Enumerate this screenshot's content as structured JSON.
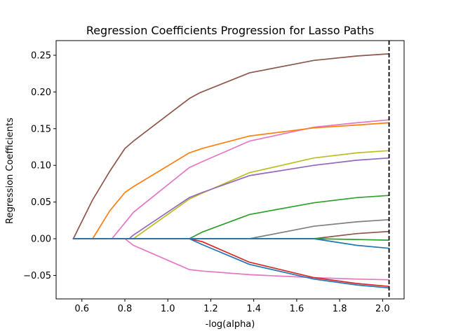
{
  "chart_data": {
    "type": "line",
    "title": "Regression Coefficients Progression for Lasso Paths",
    "xlabel": "-log(alpha)",
    "ylabel": "Regression Coefficients",
    "xlim": [
      0.48,
      2.1
    ],
    "ylim": [
      -0.082,
      0.27
    ],
    "x_ticks": [
      0.6,
      0.8,
      1.0,
      1.2,
      1.4,
      1.6,
      1.8,
      2.0
    ],
    "x_tick_labels": [
      "0.6",
      "0.8",
      "1.0",
      "1.2",
      "1.4",
      "1.6",
      "1.8",
      "2.0"
    ],
    "y_ticks": [
      -0.05,
      0.0,
      0.05,
      0.1,
      0.15,
      0.2,
      0.25
    ],
    "y_tick_labels": [
      "−0.05",
      "0.00",
      "0.05",
      "0.10",
      "0.15",
      "0.20",
      "0.25"
    ],
    "grid": false,
    "legend": "none",
    "vline": {
      "x": 2.03,
      "style": "dashed",
      "color": "#000000"
    },
    "series": [
      {
        "color": "#8c564b",
        "points": [
          [
            0.56,
            0.0
          ],
          [
            0.65,
            0.053
          ],
          [
            0.73,
            0.092
          ],
          [
            0.8,
            0.123
          ],
          [
            0.84,
            0.133
          ],
          [
            1.1,
            0.191
          ],
          [
            1.15,
            0.199
          ],
          [
            1.38,
            0.226
          ],
          [
            1.68,
            0.243
          ],
          [
            1.88,
            0.249
          ],
          [
            2.03,
            0.252
          ]
        ]
      },
      {
        "color": "#e377c2",
        "points": [
          [
            0.56,
            0.0
          ],
          [
            0.74,
            0.0
          ],
          [
            0.84,
            0.036
          ],
          [
            1.1,
            0.097
          ],
          [
            1.16,
            0.105
          ],
          [
            1.38,
            0.133
          ],
          [
            1.68,
            0.152
          ],
          [
            1.88,
            0.158
          ],
          [
            2.03,
            0.162
          ]
        ]
      },
      {
        "color": "#ff7f0e",
        "points": [
          [
            0.56,
            0.0
          ],
          [
            0.65,
            0.0
          ],
          [
            0.73,
            0.038
          ],
          [
            0.8,
            0.063
          ],
          [
            0.84,
            0.071
          ],
          [
            1.1,
            0.117
          ],
          [
            1.16,
            0.123
          ],
          [
            1.38,
            0.14
          ],
          [
            1.68,
            0.151
          ],
          [
            1.88,
            0.155
          ],
          [
            2.03,
            0.158
          ]
        ]
      },
      {
        "color": "#bcbd22",
        "points": [
          [
            0.56,
            0.0
          ],
          [
            0.84,
            0.0
          ],
          [
            1.1,
            0.054
          ],
          [
            1.16,
            0.062
          ],
          [
            1.38,
            0.09
          ],
          [
            1.68,
            0.11
          ],
          [
            1.88,
            0.117
          ],
          [
            2.03,
            0.12
          ]
        ]
      },
      {
        "color": "#9467bd",
        "points": [
          [
            0.56,
            0.0
          ],
          [
            0.82,
            0.0
          ],
          [
            0.84,
            0.005
          ],
          [
            1.1,
            0.056
          ],
          [
            1.16,
            0.063
          ],
          [
            1.38,
            0.086
          ],
          [
            1.68,
            0.1
          ],
          [
            1.88,
            0.107
          ],
          [
            2.03,
            0.11
          ]
        ]
      },
      {
        "color": "#2ca02c",
        "points": [
          [
            0.56,
            0.0
          ],
          [
            1.1,
            0.0
          ],
          [
            1.16,
            0.009
          ],
          [
            1.38,
            0.033
          ],
          [
            1.68,
            0.049
          ],
          [
            1.88,
            0.056
          ],
          [
            2.03,
            0.059
          ]
        ]
      },
      {
        "color": "#7f7f7f",
        "points": [
          [
            0.56,
            0.0
          ],
          [
            1.38,
            0.0
          ],
          [
            1.68,
            0.017
          ],
          [
            1.88,
            0.023
          ],
          [
            2.03,
            0.026
          ]
        ]
      },
      {
        "color": "#8c564b",
        "points": [
          [
            0.56,
            0.0
          ],
          [
            1.68,
            0.0
          ],
          [
            1.88,
            0.007
          ],
          [
            2.03,
            0.01
          ]
        ]
      },
      {
        "color": "#2ca02c",
        "points": [
          [
            0.56,
            0.0
          ],
          [
            1.68,
            0.0
          ],
          [
            1.88,
            -0.001
          ],
          [
            2.03,
            -0.002
          ]
        ]
      },
      {
        "color": "#1f77b4",
        "points": [
          [
            0.56,
            0.0
          ],
          [
            1.68,
            0.0
          ],
          [
            1.88,
            -0.009
          ],
          [
            2.03,
            -0.013
          ]
        ]
      },
      {
        "color": "#e377c2",
        "points": [
          [
            0.56,
            0.0
          ],
          [
            0.8,
            0.0
          ],
          [
            0.84,
            -0.009
          ],
          [
            1.1,
            -0.042
          ],
          [
            1.16,
            -0.044
          ],
          [
            1.38,
            -0.049
          ],
          [
            1.68,
            -0.053
          ],
          [
            1.88,
            -0.055
          ],
          [
            2.03,
            -0.056
          ]
        ]
      },
      {
        "color": "#d62728",
        "points": [
          [
            0.56,
            0.0
          ],
          [
            1.1,
            0.0
          ],
          [
            1.16,
            -0.004
          ],
          [
            1.38,
            -0.032
          ],
          [
            1.68,
            -0.053
          ],
          [
            1.88,
            -0.061
          ],
          [
            2.03,
            -0.065
          ]
        ]
      },
      {
        "color": "#1f77b4",
        "points": [
          [
            0.56,
            0.0
          ],
          [
            1.1,
            0.0
          ],
          [
            1.16,
            -0.008
          ],
          [
            1.38,
            -0.035
          ],
          [
            1.68,
            -0.055
          ],
          [
            1.88,
            -0.063
          ],
          [
            2.03,
            -0.067
          ]
        ]
      }
    ]
  }
}
